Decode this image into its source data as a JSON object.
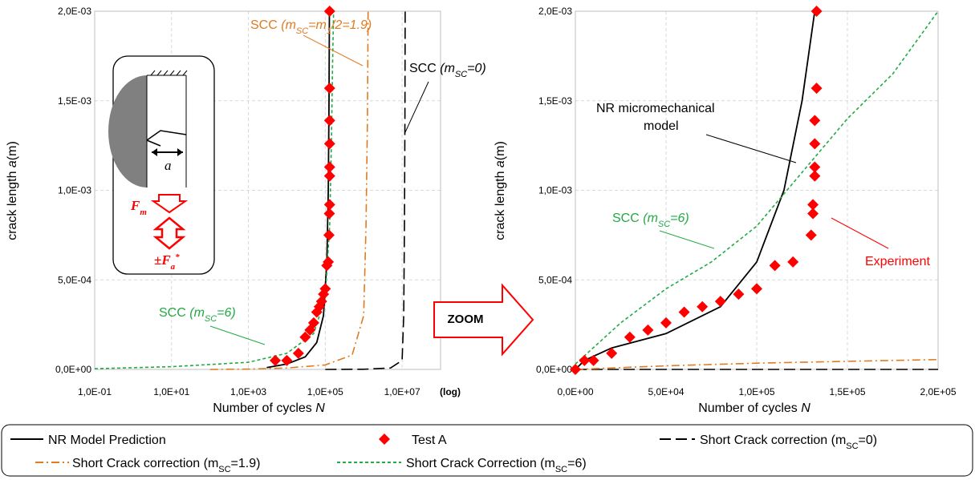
{
  "chart_data": [
    {
      "type": "line",
      "xscale": "log",
      "xlim": [
        0.1,
        100000000
      ],
      "ylim": [
        0,
        0.002
      ],
      "x_ticks": [
        "1,0E-01",
        "1,0E+01",
        "1,0E+03",
        "1,0E+05",
        "1,0E+07"
      ],
      "x_tick_values": [
        0.1,
        10,
        1000,
        100000,
        10000000
      ],
      "x_scale_note": "(log)",
      "y_ticks": [
        "0,0E+00",
        "5,0E-04",
        "1,0E-03",
        "1,5E-03",
        "2,0E-03"
      ],
      "y_tick_values": [
        0,
        0.0005,
        0.001,
        0.0015,
        0.002
      ],
      "xlabel": "Number of cycles N",
      "ylabel": "crack length a(m)",
      "grid": true,
      "series": [
        {
          "name": "NR Model Prediction",
          "color": "#000000",
          "style": "solid",
          "points": [
            [
              3000,
              1e-05
            ],
            [
              10000,
              3e-05
            ],
            [
              30000,
              7e-05
            ],
            [
              60000,
              0.00015
            ],
            [
              90000,
              0.0003
            ],
            [
              110000,
              0.0006
            ],
            [
              120000,
              0.001
            ],
            [
              125000,
              0.0015
            ],
            [
              128000,
              0.002
            ]
          ]
        },
        {
          "name": "Short Crack correction (mSC=0)",
          "color": "#000000",
          "style": "dash",
          "points": [
            [
              100000,
              0
            ],
            [
              1000000,
              1e-06
            ],
            [
              5000000,
              8e-06
            ],
            [
              10000000,
              5e-05
            ],
            [
              11000000,
              0.0003
            ],
            [
              11500000,
              0.0008
            ],
            [
              11800000,
              0.0014
            ],
            [
              12000000,
              0.002
            ]
          ]
        },
        {
          "name": "Short Crack correction (mSC=1.9)",
          "color": "#e07b20",
          "style": "dashdot",
          "points": [
            [
              100,
              0
            ],
            [
              1000,
              2e-06
            ],
            [
              10000,
              8e-06
            ],
            [
              100000,
              2.5e-05
            ],
            [
              500000,
              8e-05
            ],
            [
              1000000,
              0.0003
            ],
            [
              1150000,
              0.0008
            ],
            [
              1250000,
              0.0014
            ],
            [
              1300000,
              0.002
            ]
          ]
        },
        {
          "name": "Short Crack Correction (mSC=6)",
          "color": "#22aa44",
          "style": "dot",
          "points": [
            [
              0.1,
              4e-06
            ],
            [
              10,
              1.5e-05
            ],
            [
              1000,
              4e-05
            ],
            [
              10000,
              9e-05
            ],
            [
              50000,
              0.0002
            ],
            [
              100000,
              0.0004
            ],
            [
              130000,
              0.0008
            ],
            [
              145000,
              0.0013
            ],
            [
              155000,
              0.0017
            ],
            [
              165000,
              0.002
            ]
          ]
        },
        {
          "name": "Test A",
          "color": "#ff0000",
          "style": "marker",
          "points": [
            [
              5000,
              5e-05
            ],
            [
              10000,
              5e-05
            ],
            [
              20000,
              9e-05
            ],
            [
              30000,
              0.00018
            ],
            [
              40000,
              0.00022
            ],
            [
              50000,
              0.00026
            ],
            [
              60000,
              0.00032
            ],
            [
              70000,
              0.00035
            ],
            [
              80000,
              0.00038
            ],
            [
              90000,
              0.00042
            ],
            [
              100000,
              0.00045
            ],
            [
              110000,
              0.00058
            ],
            [
              120000,
              0.0006
            ],
            [
              125000,
              0.00075
            ],
            [
              128000,
              0.00087
            ],
            [
              130000,
              0.00092
            ],
            [
              130000,
              0.00108
            ],
            [
              130000,
              0.00113
            ],
            [
              130000,
              0.00126
            ],
            [
              130000,
              0.00139
            ],
            [
              130000,
              0.00157
            ],
            [
              130000,
              0.002
            ]
          ]
        }
      ],
      "annotations": {
        "scc19": "SCC (mSC=m1/2=1.9)",
        "scc0": "SCC (mSC=0)",
        "scc6": "SCC (mSC=6)",
        "inset_a": "a",
        "inset_fm": "Fm",
        "inset_fa": "±Fa*"
      }
    },
    {
      "type": "line",
      "xscale": "linear",
      "xlim": [
        0,
        200000
      ],
      "ylim": [
        0,
        0.002
      ],
      "x_ticks": [
        "0,0E+00",
        "5,0E+04",
        "1,0E+05",
        "1,5E+05",
        "2,0E+05"
      ],
      "x_tick_values": [
        0,
        50000,
        100000,
        150000,
        200000
      ],
      "y_ticks": [
        "0,0E+00",
        "5,0E-04",
        "1,0E-03",
        "1,5E-03",
        "2,0E-03"
      ],
      "y_tick_values": [
        0,
        0.0005,
        0.001,
        0.0015,
        0.002
      ],
      "xlabel": "Number of cycles N",
      "ylabel": "crack length a(m)",
      "grid": true,
      "series": [
        {
          "name": "NR Model Prediction",
          "color": "#000000",
          "style": "solid",
          "points": [
            [
              0,
              0
            ],
            [
              5000,
              5e-05
            ],
            [
              20000,
              0.00012
            ],
            [
              50000,
              0.0002
            ],
            [
              80000,
              0.00035
            ],
            [
              100000,
              0.0006
            ],
            [
              115000,
              0.001
            ],
            [
              125000,
              0.0015
            ],
            [
              132000,
              0.002
            ]
          ]
        },
        {
          "name": "Short Crack correction (mSC=0)",
          "color": "#000000",
          "style": "dash",
          "points": [
            [
              0,
              0
            ],
            [
              200000,
              0
            ]
          ]
        },
        {
          "name": "Short Crack correction (mSC=1.9)",
          "color": "#e07b20",
          "style": "dashdot",
          "points": [
            [
              0,
              0
            ],
            [
              50000,
              2e-05
            ],
            [
              100000,
              3.5e-05
            ],
            [
              150000,
              4.5e-05
            ],
            [
              200000,
              5.5e-05
            ]
          ]
        },
        {
          "name": "Short Crack Correction (mSC=6)",
          "color": "#22aa44",
          "style": "dot",
          "points": [
            [
              0,
              3e-05
            ],
            [
              25000,
              0.00026
            ],
            [
              50000,
              0.00045
            ],
            [
              75000,
              0.0006
            ],
            [
              100000,
              0.0008
            ],
            [
              125000,
              0.0011
            ],
            [
              150000,
              0.0014
            ],
            [
              175000,
              0.00165
            ],
            [
              200000,
              0.002
            ]
          ]
        },
        {
          "name": "Test A",
          "color": "#ff0000",
          "style": "marker",
          "points": [
            [
              0,
              0
            ],
            [
              5000,
              5e-05
            ],
            [
              10000,
              5e-05
            ],
            [
              20000,
              9e-05
            ],
            [
              30000,
              0.00018
            ],
            [
              40000,
              0.00022
            ],
            [
              50000,
              0.00026
            ],
            [
              60000,
              0.00032
            ],
            [
              70000,
              0.00035
            ],
            [
              80000,
              0.00038
            ],
            [
              90000,
              0.00042
            ],
            [
              100000,
              0.00045
            ],
            [
              110000,
              0.00058
            ],
            [
              120000,
              0.0006
            ],
            [
              130000,
              0.00075
            ],
            [
              131000,
              0.00087
            ],
            [
              131000,
              0.00092
            ],
            [
              132000,
              0.00108
            ],
            [
              132000,
              0.00113
            ],
            [
              132000,
              0.00126
            ],
            [
              132000,
              0.00139
            ],
            [
              133000,
              0.00157
            ],
            [
              133000,
              0.002
            ]
          ]
        }
      ],
      "annotations": {
        "nr": "NR micromechanical model",
        "scc6": "SCC (mSC=6)",
        "exp": "Experiment"
      }
    }
  ],
  "zoom_label": "ZOOM",
  "legend": {
    "nr": "NR Model Prediction",
    "test": "Test A",
    "sc0": "Short Crack correction (mSC=0)",
    "sc19": "Short Crack correction (mSC=1.9)",
    "sc6": "Short Crack Correction (mSC=6)"
  },
  "colors": {
    "red": "#ff0000",
    "green": "#22aa44",
    "orange": "#e07b20",
    "black": "#000000"
  }
}
